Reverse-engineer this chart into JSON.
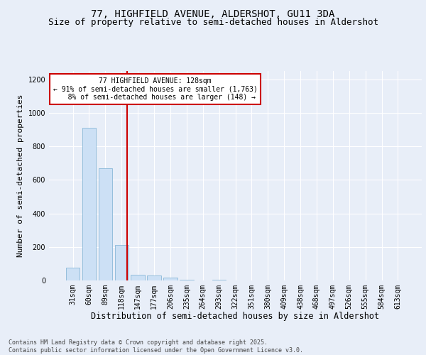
{
  "title_line1": "77, HIGHFIELD AVENUE, ALDERSHOT, GU11 3DA",
  "title_line2": "Size of property relative to semi-detached houses in Aldershot",
  "xlabel": "Distribution of semi-detached houses by size in Aldershot",
  "ylabel": "Number of semi-detached properties",
  "categories": [
    "31sqm",
    "60sqm",
    "89sqm",
    "118sqm",
    "147sqm",
    "177sqm",
    "206sqm",
    "235sqm",
    "264sqm",
    "293sqm",
    "322sqm",
    "351sqm",
    "380sqm",
    "409sqm",
    "438sqm",
    "468sqm",
    "497sqm",
    "526sqm",
    "555sqm",
    "584sqm",
    "613sqm"
  ],
  "values": [
    75,
    910,
    670,
    210,
    35,
    30,
    15,
    5,
    0,
    5,
    0,
    0,
    0,
    0,
    0,
    0,
    0,
    0,
    0,
    0,
    0
  ],
  "bar_color": "#cce0f5",
  "bar_edge_color": "#8ab8d8",
  "vline_color": "#cc0000",
  "annotation_text": "77 HIGHFIELD AVENUE: 128sqm\n← 91% of semi-detached houses are smaller (1,763)\n   8% of semi-detached houses are larger (148) →",
  "annotation_box_color": "#ffffff",
  "annotation_box_edge_color": "#cc0000",
  "ylim": [
    0,
    1250
  ],
  "yticks": [
    0,
    200,
    400,
    600,
    800,
    1000,
    1200
  ],
  "background_color": "#e8eef8",
  "grid_color": "#ffffff",
  "footnote": "Contains HM Land Registry data © Crown copyright and database right 2025.\nContains public sector information licensed under the Open Government Licence v3.0.",
  "title_fontsize": 10,
  "subtitle_fontsize": 9,
  "tick_fontsize": 7,
  "ylabel_fontsize": 8,
  "xlabel_fontsize": 8.5,
  "annot_fontsize": 7,
  "footnote_fontsize": 6
}
